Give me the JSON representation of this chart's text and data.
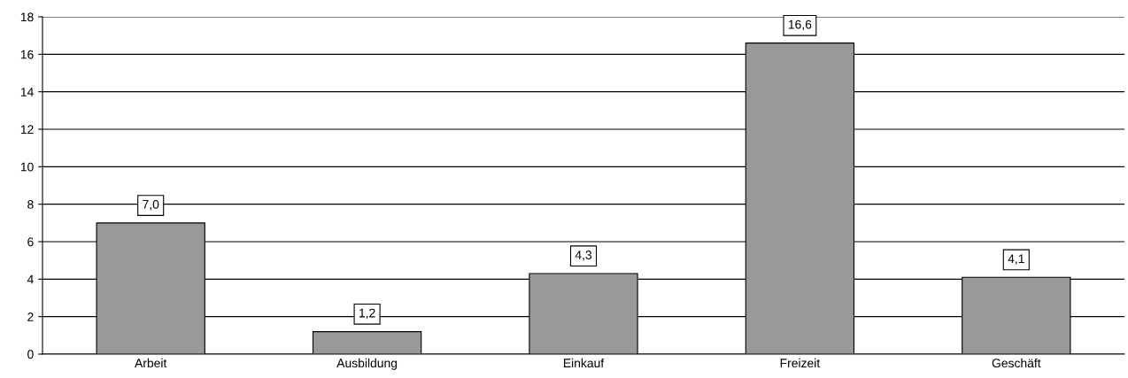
{
  "chart_data": {
    "type": "bar",
    "categories": [
      "Arbeit",
      "Ausbildung",
      "Einkauf",
      "Freizeit",
      "Geschäft"
    ],
    "values": [
      7.0,
      1.2,
      4.3,
      16.6,
      4.1
    ],
    "value_labels": [
      "7,0",
      "1,2",
      "4,3",
      "16,6",
      "4,1"
    ],
    "color": "#999999",
    "ylim": [
      0,
      18
    ],
    "yticks": [
      0,
      2,
      4,
      6,
      8,
      10,
      12,
      14,
      16,
      18
    ],
    "grid": "y",
    "legend": false
  }
}
